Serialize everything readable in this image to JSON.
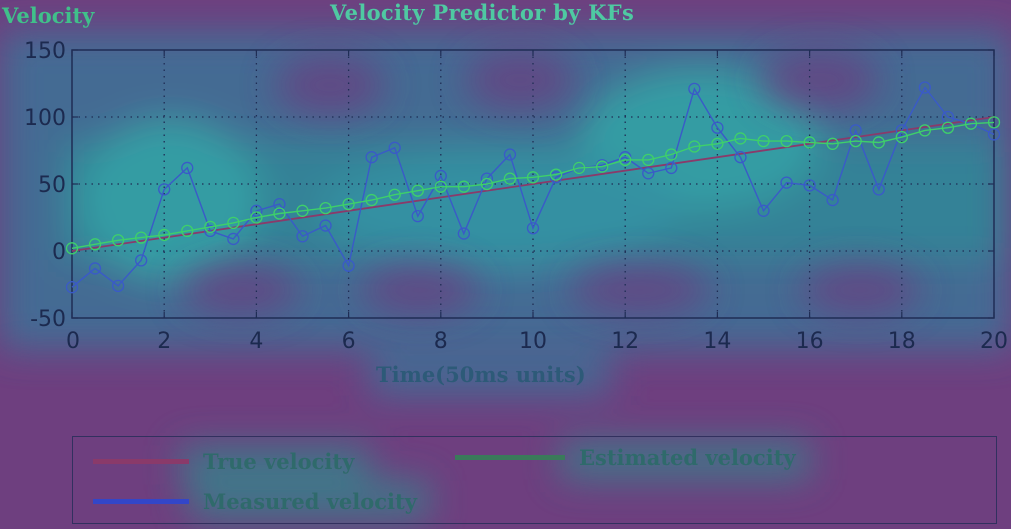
{
  "chart_data": {
    "type": "line",
    "title": "Velocity Predictor by KFs",
    "ylabel": "Velocity",
    "xlabel": "Time(50ms units)",
    "xlim": [
      0,
      20
    ],
    "ylim": [
      -50,
      150
    ],
    "xticks": [
      0,
      2,
      4,
      6,
      8,
      10,
      12,
      14,
      16,
      18,
      20
    ],
    "yticks": [
      -50,
      0,
      50,
      100,
      150
    ],
    "grid": true,
    "legend_position": "bottom",
    "series": [
      {
        "name": "True velocity",
        "color": "#8a3a6a",
        "marker": "none",
        "x": [
          0,
          20
        ],
        "y": [
          0,
          100
        ]
      },
      {
        "name": "Measured velocity",
        "color": "#3a5ac8",
        "marker": "circle",
        "x": [
          0,
          0.5,
          1,
          1.5,
          2,
          2.5,
          3,
          3.5,
          4,
          4.5,
          5,
          5.5,
          6,
          6.5,
          7,
          7.5,
          8,
          8.5,
          9,
          9.5,
          10,
          10.5,
          11,
          11.5,
          12,
          12.5,
          13,
          13.5,
          14,
          14.5,
          15,
          15.5,
          16,
          16.5,
          17,
          17.5,
          18,
          18.5,
          19,
          19.5,
          20
        ],
        "y": [
          -27,
          -13,
          -26,
          -7,
          46,
          62,
          15,
          9,
          30,
          35,
          11,
          19,
          -11,
          70,
          77,
          26,
          56,
          13,
          54,
          72,
          17,
          55,
          62,
          64,
          70,
          58,
          62,
          121,
          92,
          70,
          30,
          51,
          49,
          38,
          90,
          46,
          90,
          122,
          100,
          95,
          87
        ]
      },
      {
        "name": "Estimated velocity",
        "color": "#3ed06a",
        "marker": "circle",
        "x": [
          0,
          0.5,
          1,
          1.5,
          2,
          2.5,
          3,
          3.5,
          4,
          4.5,
          5,
          5.5,
          6,
          6.5,
          7,
          7.5,
          8,
          8.5,
          9,
          9.5,
          10,
          10.5,
          11,
          11.5,
          12,
          12.5,
          13,
          13.5,
          14,
          14.5,
          15,
          15.5,
          16,
          16.5,
          17,
          17.5,
          18,
          18.5,
          19,
          19.5,
          20
        ],
        "y": [
          2,
          5,
          8,
          10,
          12,
          15,
          18,
          21,
          25,
          28,
          30,
          32,
          35,
          38,
          42,
          45,
          48,
          48,
          50,
          54,
          55,
          57,
          62,
          63,
          68,
          68,
          72,
          78,
          80,
          84,
          82,
          82,
          81,
          80,
          82,
          81,
          85,
          90,
          92,
          95,
          96
        ]
      }
    ]
  },
  "legend": {
    "true_label": "True velocity",
    "estimated_label": "Estimated velocity",
    "measured_label": "Measured velocity"
  }
}
